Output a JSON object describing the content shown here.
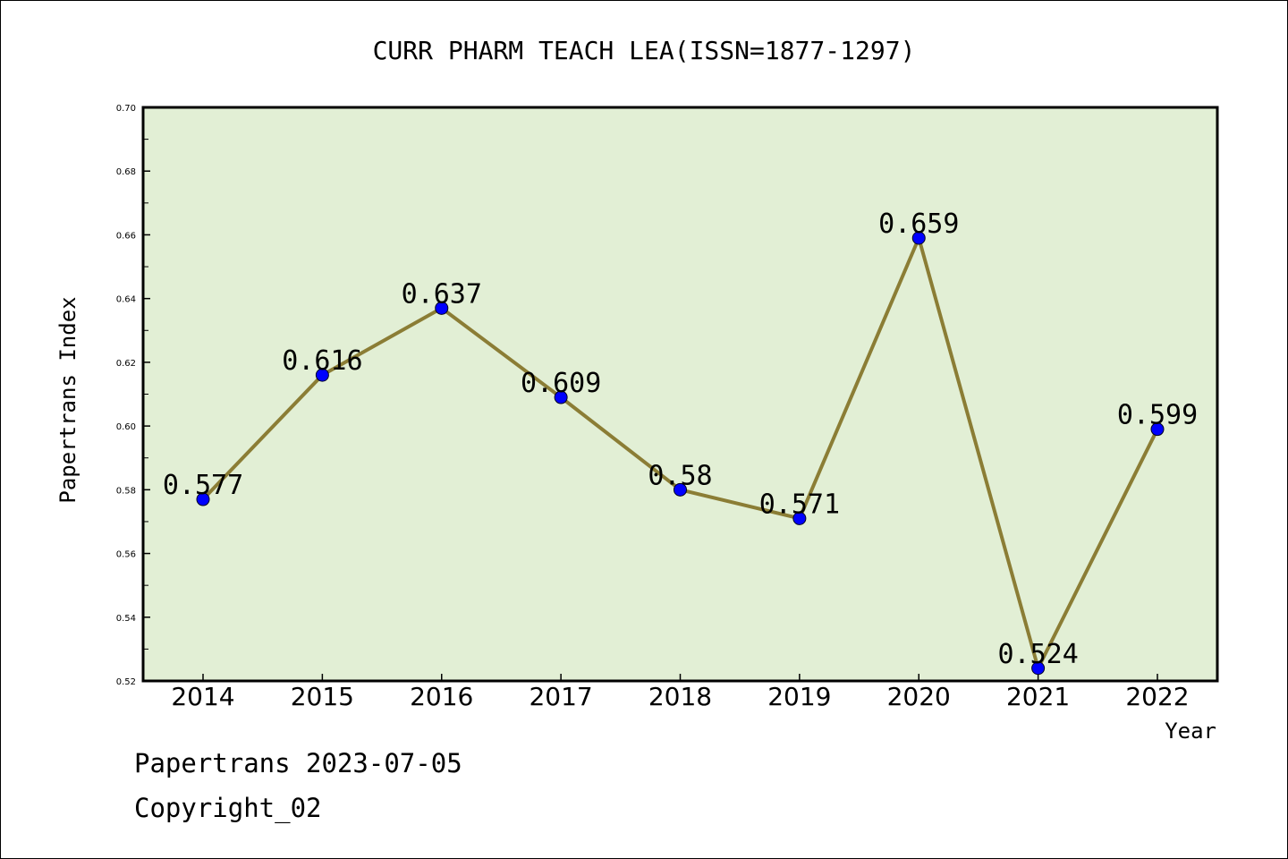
{
  "chart_data": {
    "type": "line",
    "title": "CURR PHARM TEACH LEA(ISSN=1877-1297)",
    "xlabel": "Year",
    "ylabel": "Papertrans Index",
    "categories": [
      "2014",
      "2015",
      "2016",
      "2017",
      "2018",
      "2019",
      "2020",
      "2021",
      "2022"
    ],
    "values": [
      0.577,
      0.616,
      0.637,
      0.609,
      0.58,
      0.571,
      0.659,
      0.524,
      0.599
    ],
    "data_labels": [
      "0.577",
      "0.616",
      "0.637",
      "0.609",
      "0.58",
      "0.571",
      "0.659",
      "0.524",
      "0.599"
    ],
    "ylim": [
      0.52,
      0.7
    ],
    "yticks": [
      "0.52",
      "0.54",
      "0.56",
      "0.58",
      "0.60",
      "0.62",
      "0.64",
      "0.66",
      "0.68",
      "0.70"
    ],
    "grid": false,
    "colors": {
      "plot_background": "#e2efd5",
      "line": "#8b7d35",
      "marker": "#0000ff"
    }
  },
  "footer": {
    "line1": "Papertrans 2023-07-05",
    "line2": "Copyright_02"
  }
}
